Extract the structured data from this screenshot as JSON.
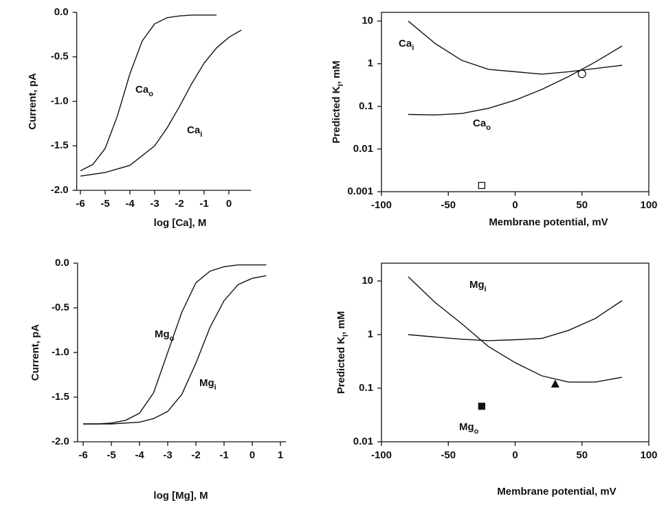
{
  "chart_data": [
    {
      "type": "line",
      "xlabel": "log [Ca], M",
      "ylabel": [
        "Current, pA"
      ],
      "yscale": "linear",
      "frame": false,
      "xlim": [
        -6.15,
        0.9
      ],
      "ylim": [
        -2,
        0
      ],
      "xticks": [
        -6,
        -5,
        -4,
        -3,
        -2,
        -1,
        0
      ],
      "yticks": [
        {
          "value": 0,
          "label": "0.0"
        },
        -0.5,
        {
          "value": -1,
          "label": "-1.0"
        },
        -1.5,
        {
          "value": -2,
          "label": "-2.0"
        }
      ],
      "series": [
        {
          "name": [
            "Ca",
            "o"
          ],
          "color": "#111111",
          "x": [
            -6,
            -5.5,
            -5,
            -4.5,
            -4,
            -3.5,
            -3,
            -2.5,
            -2,
            -1.5,
            -1,
            -0.5
          ],
          "values": [
            -1.78,
            -1.71,
            -1.53,
            -1.16,
            -0.69,
            -0.32,
            -0.13,
            -0.06,
            -0.04,
            -0.03,
            -0.03,
            -0.03
          ]
        },
        {
          "name": [
            "Ca",
            "i"
          ],
          "color": "#111111",
          "x": [
            -6,
            -5,
            -4,
            -3,
            -2.5,
            -2,
            -1.5,
            -1,
            -0.5,
            0,
            0.5
          ],
          "values": [
            -1.84,
            -1.8,
            -1.72,
            -1.5,
            -1.3,
            -1.06,
            -0.8,
            -0.57,
            -0.4,
            -0.28,
            -0.2
          ]
        }
      ]
    },
    {
      "type": "line",
      "xlabel": "Membrane potential, mV",
      "ylabel": [
        "Predicted K",
        "I",
        ", mM"
      ],
      "yscale": "log",
      "frame": true,
      "xlim": [
        -100,
        100
      ],
      "ylim": [
        0.001,
        16
      ],
      "xticks": [
        -100,
        -50,
        0,
        50,
        100
      ],
      "yticks": [
        0.001,
        0.01,
        0.1,
        1,
        10
      ],
      "series": [
        {
          "name": [
            "Ca",
            "i"
          ],
          "color": "#111111",
          "x": [
            -80,
            -60,
            -40,
            -20,
            20,
            40,
            80
          ],
          "values": [
            10,
            3.0,
            1.2,
            0.74,
            0.57,
            0.65,
            0.92
          ]
        },
        {
          "name": [
            "Ca",
            "o"
          ],
          "color": "#111111",
          "x": [
            -80,
            -60,
            -40,
            -20,
            0,
            20,
            40,
            60,
            80
          ],
          "values": [
            0.065,
            0.063,
            0.068,
            0.09,
            0.14,
            0.25,
            0.5,
            1.1,
            2.6
          ]
        }
      ],
      "points": [
        {
          "x": 50,
          "y": 0.58,
          "marker": "circle",
          "filled": false
        },
        {
          "x": -25,
          "y": 0.0014,
          "marker": "square",
          "filled": false
        }
      ]
    },
    {
      "type": "line",
      "xlabel": "log [Mg], M",
      "ylabel": [
        "Current, pA"
      ],
      "yscale": "linear",
      "frame": false,
      "xlim": [
        -6.2,
        1.2
      ],
      "ylim": [
        -2,
        0
      ],
      "xticks": [
        -6,
        -5,
        -4,
        -3,
        -2,
        -1,
        0,
        1
      ],
      "yticks": [
        {
          "value": 0,
          "label": "0.0"
        },
        -0.5,
        {
          "value": -1,
          "label": "-1.0"
        },
        -1.5,
        {
          "value": -2,
          "label": "-2.0"
        }
      ],
      "series": [
        {
          "name": [
            "Mg",
            "o"
          ],
          "color": "#111111",
          "x": [
            -6,
            -5.5,
            -5,
            -4.5,
            -4,
            -3.5,
            -3,
            -2.5,
            -2,
            -1.5,
            -1,
            -0.5,
            0,
            0.5
          ],
          "values": [
            -1.8,
            -1.8,
            -1.79,
            -1.76,
            -1.68,
            -1.45,
            -1.0,
            -0.55,
            -0.22,
            -0.09,
            -0.04,
            -0.02,
            -0.02,
            -0.02
          ]
        },
        {
          "name": [
            "Mg",
            "i"
          ],
          "color": "#111111",
          "x": [
            -6,
            -5,
            -4,
            -3.5,
            -3,
            -2.5,
            -2,
            -1.5,
            -1,
            -0.5,
            0,
            0.5
          ],
          "values": [
            -1.8,
            -1.8,
            -1.78,
            -1.74,
            -1.66,
            -1.47,
            -1.12,
            -0.72,
            -0.42,
            -0.24,
            -0.17,
            -0.14
          ]
        }
      ]
    },
    {
      "type": "line",
      "xlabel": "Membrane potential, mV",
      "ylabel": [
        "Predicted K",
        "I",
        ", mM"
      ],
      "yscale": "log",
      "frame": true,
      "xlim": [
        -100,
        100
      ],
      "ylim": [
        0.01,
        21.5
      ],
      "xticks": [
        -100,
        -50,
        0,
        50,
        100
      ],
      "yticks": [
        0.01,
        0.1,
        1,
        10
      ],
      "series": [
        {
          "name": [
            "Mg",
            "i"
          ],
          "color": "#111111",
          "x": [
            -80,
            -60,
            -40,
            -20,
            0,
            20,
            40,
            60,
            80
          ],
          "values": [
            12,
            4,
            1.6,
            0.6,
            0.3,
            0.17,
            0.13,
            0.13,
            0.16
          ]
        },
        {
          "name": [
            "Mg",
            "o"
          ],
          "color": "#111111",
          "x": [
            -80,
            -60,
            -40,
            -20,
            0,
            20,
            40,
            60,
            80
          ],
          "values": [
            1.0,
            0.9,
            0.82,
            0.77,
            0.8,
            0.85,
            1.2,
            2.0,
            4.3
          ]
        }
      ],
      "points": [
        {
          "x": -25,
          "y": 0.046,
          "marker": "square",
          "filled": true
        },
        {
          "x": 30,
          "y": 0.12,
          "marker": "triangle",
          "filled": true
        }
      ]
    }
  ]
}
